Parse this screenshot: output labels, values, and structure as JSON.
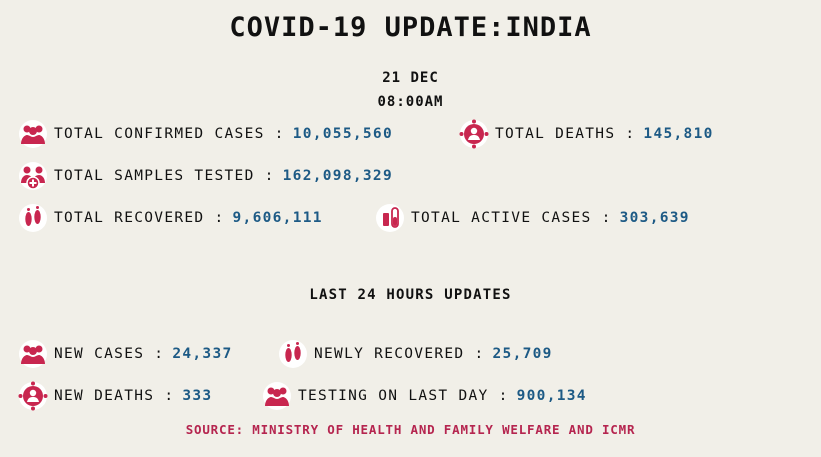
{
  "header": {
    "title": "COVID-19 UPDATE:INDIA",
    "date": "21 DEC",
    "time": "08:00AM"
  },
  "colors": {
    "accent_value": "#1d5a85",
    "icon": "#c8264f",
    "source": "#b5254f",
    "background": "#f1efe8"
  },
  "totals": {
    "confirmed": {
      "label": "TOTAL CONFIRMED CASES :",
      "value": "10,055,560",
      "icon": "people-group-icon"
    },
    "deaths": {
      "label": "TOTAL DEATHS :",
      "value": "145,810",
      "icon": "virus-person-icon"
    },
    "samples": {
      "label": "TOTAL SAMPLES TESTED :",
      "value": "162,098,329",
      "icon": "medical-people-icon"
    },
    "recovered": {
      "label": "TOTAL RECOVERED :",
      "value": "9,606,111",
      "icon": "footprints-icon"
    },
    "active": {
      "label": "TOTAL ACTIVE CASES :",
      "value": "303,639",
      "icon": "test-tube-icon"
    }
  },
  "last24": {
    "heading": "LAST 24 HOURS UPDATES",
    "new_cases": {
      "label": "NEW CASES :",
      "value": "24,337",
      "icon": "people-group-icon"
    },
    "newly_recovered": {
      "label": "NEWLY RECOVERED :",
      "value": "25,709",
      "icon": "footprints-icon"
    },
    "new_deaths": {
      "label": "NEW DEATHS :",
      "value": "333",
      "icon": "virus-person-icon"
    },
    "testing": {
      "label": "TESTING ON LAST DAY :",
      "value": "900,134",
      "icon": "people-group-icon"
    }
  },
  "source": "SOURCE: MINISTRY OF HEALTH AND FAMILY WELFARE AND ICMR"
}
